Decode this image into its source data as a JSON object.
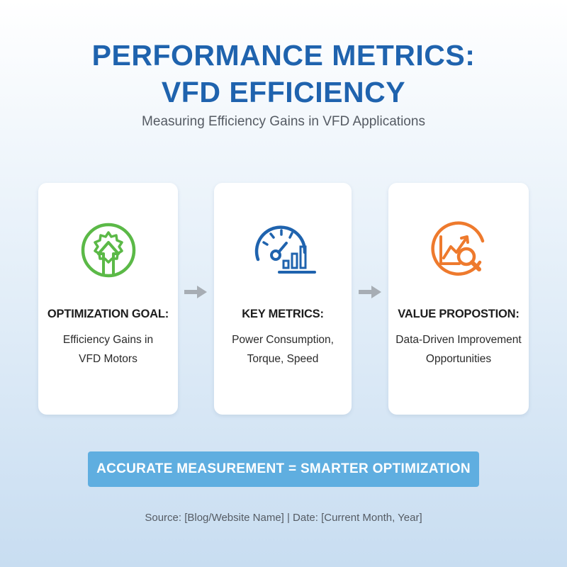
{
  "header": {
    "title_line1": "PERFORMANCE METRICS:",
    "title_line2": "VFD EFFICIENCY",
    "subtitle": "Measuring Efficiency Gains in VFD Applications"
  },
  "cards": [
    {
      "icon": "gear-arrow-icon",
      "heading": "OPTIMIZATION GOAL:",
      "text": "Efficiency Gains in\nVFD Motors",
      "accent": "#5bb947"
    },
    {
      "icon": "gauge-bar-chart-icon",
      "heading": "KEY METRICS:",
      "text": "Power Consumption,\nTorque, Speed",
      "accent": "#1f63ae"
    },
    {
      "icon": "trend-magnifier-icon",
      "heading": "VALUE PROPOSTION:",
      "text": "Data-Driven Improvement\nOpportunities",
      "accent": "#ee7a2d"
    }
  ],
  "arrows": {
    "color": "#a7adb4",
    "icon": "arrow-right-icon"
  },
  "banner": {
    "text": "ACCURATE MEASUREMENT = SMARTER OPTIMIZATION",
    "color": "#5faee0"
  },
  "footer": {
    "source": "Source: [Blog/Website Name] | Date: [Current Month, Year]"
  }
}
